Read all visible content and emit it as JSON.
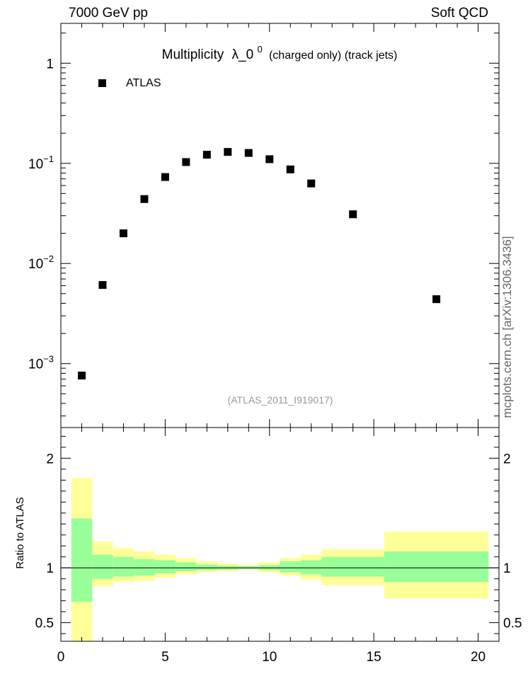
{
  "header": {
    "left": "7000 GeV pp",
    "right": "Soft QCD",
    "side": "mcplots.cern.ch [arXiv:1306.3436]"
  },
  "chart_data": [
    {
      "type": "scatter",
      "title": "Multiplicity",
      "title_symbol": "λ_0",
      "title_sup": "0",
      "title_suffix": "(charged only) (track jets)",
      "watermark": "(ATLAS_2011_I919017)",
      "yscale": "log",
      "xlim": [
        0,
        21
      ],
      "ylim": [
        0.00023,
        2.5
      ],
      "y_ticks": [
        {
          "value": 1,
          "base": "1",
          "exp": ""
        },
        {
          "value": 0.1,
          "base": "10",
          "exp": "−1"
        },
        {
          "value": 0.01,
          "base": "10",
          "exp": "−2"
        },
        {
          "value": 0.001,
          "base": "10",
          "exp": "−3"
        }
      ],
      "series": [
        {
          "name": "ATLAS",
          "color": "#000000",
          "x": [
            1,
            2,
            3,
            4,
            5,
            6,
            7,
            8,
            9,
            10,
            11,
            12,
            14,
            18
          ],
          "y": [
            0.00076,
            0.0061,
            0.02,
            0.044,
            0.073,
            0.103,
            0.122,
            0.13,
            0.127,
            0.11,
            0.087,
            0.063,
            0.031,
            0.0044
          ]
        }
      ],
      "legend_position": "top-left"
    },
    {
      "type": "area",
      "ylabel": "Ratio to ATLAS",
      "xlim": [
        0,
        21
      ],
      "ylim": [
        0.33,
        2.28
      ],
      "x_ticks": [
        "0",
        "5",
        "10",
        "15",
        "20"
      ],
      "y_ticks": [
        "0.5",
        "1",
        "2"
      ],
      "reference_line": 1,
      "colors": {
        "inner": "#99ff99",
        "outer": "#ffff99"
      },
      "bins": [
        {
          "lo": 0.5,
          "hi": 1.5,
          "inner": [
            0.69,
            1.45
          ],
          "outer": [
            0.33,
            1.82
          ]
        },
        {
          "lo": 1.5,
          "hi": 2.5,
          "inner": [
            0.9,
            1.12
          ],
          "outer": [
            0.83,
            1.24
          ]
        },
        {
          "lo": 2.5,
          "hi": 3.5,
          "inner": [
            0.92,
            1.1
          ],
          "outer": [
            0.87,
            1.18
          ]
        },
        {
          "lo": 3.5,
          "hi": 4.5,
          "inner": [
            0.93,
            1.08
          ],
          "outer": [
            0.88,
            1.15
          ]
        },
        {
          "lo": 4.5,
          "hi": 5.5,
          "inner": [
            0.95,
            1.07
          ],
          "outer": [
            0.91,
            1.12
          ]
        },
        {
          "lo": 5.5,
          "hi": 6.5,
          "inner": [
            0.97,
            1.05
          ],
          "outer": [
            0.94,
            1.09
          ]
        },
        {
          "lo": 6.5,
          "hi": 7.5,
          "inner": [
            0.98,
            1.03
          ],
          "outer": [
            0.96,
            1.06
          ]
        },
        {
          "lo": 7.5,
          "hi": 8.5,
          "inner": [
            0.985,
            1.02
          ],
          "outer": [
            0.97,
            1.04
          ]
        },
        {
          "lo": 8.5,
          "hi": 9.5,
          "inner": [
            0.99,
            1.015
          ],
          "outer": [
            0.985,
            1.025
          ]
        },
        {
          "lo": 9.5,
          "hi": 10.5,
          "inner": [
            0.98,
            1.025
          ],
          "outer": [
            0.96,
            1.05
          ]
        },
        {
          "lo": 10.5,
          "hi": 11.5,
          "inner": [
            0.96,
            1.06
          ],
          "outer": [
            0.93,
            1.09
          ]
        },
        {
          "lo": 11.5,
          "hi": 12.5,
          "inner": [
            0.94,
            1.07
          ],
          "outer": [
            0.89,
            1.12
          ]
        },
        {
          "lo": 12.5,
          "hi": 15.5,
          "inner": [
            0.92,
            1.1
          ],
          "outer": [
            0.84,
            1.17
          ]
        },
        {
          "lo": 15.5,
          "hi": 20.5,
          "inner": [
            0.87,
            1.15
          ],
          "outer": [
            0.72,
            1.33
          ]
        }
      ]
    }
  ]
}
